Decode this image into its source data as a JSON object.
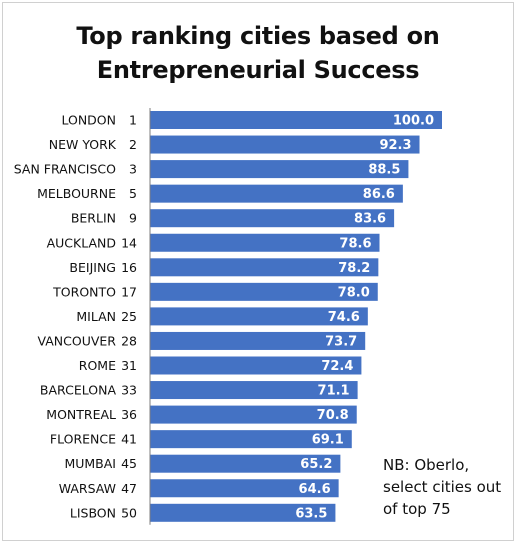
{
  "chart_data": {
    "type": "bar",
    "orientation": "horizontal",
    "title_lines": [
      "Top ranking cities based on",
      "Entrepreneurial Success"
    ],
    "categories": [
      "LONDON",
      "NEW YORK",
      "SAN FRANCISCO",
      "MELBOURNE",
      "BERLIN",
      "AUCKLAND",
      "BEIJING",
      "TORONTO",
      "MILAN",
      "VANCOUVER",
      "ROME",
      "BARCELONA",
      "MONTREAL",
      "FLORENCE",
      "MUMBAI",
      "WARSAW",
      "LISBON"
    ],
    "ranks": [
      "1",
      "2",
      "3",
      "5",
      "9",
      "14",
      "16",
      "17",
      "25",
      "28",
      "31",
      "33",
      "36",
      "41",
      "45",
      "47",
      "50"
    ],
    "values": [
      100.0,
      92.3,
      88.5,
      86.6,
      83.6,
      78.6,
      78.2,
      78.0,
      74.6,
      73.7,
      72.4,
      71.1,
      70.8,
      69.1,
      65.2,
      64.6,
      63.5
    ],
    "value_labels": [
      "100.0",
      "92.3",
      "88.5",
      "86.6",
      "83.6",
      "78.6",
      "78.2",
      "78.0",
      "74.6",
      "73.7",
      "72.4",
      "71.1",
      "70.8",
      "69.1",
      "65.2",
      "64.6",
      "63.5"
    ],
    "xlim": [
      0,
      100
    ],
    "bar_color": "#4472c4",
    "label_color": "#ffffff",
    "grid": false,
    "legend": "none"
  },
  "note_lines": [
    "NB: Oberlo,",
    "select cities out",
    "of top 75"
  ]
}
